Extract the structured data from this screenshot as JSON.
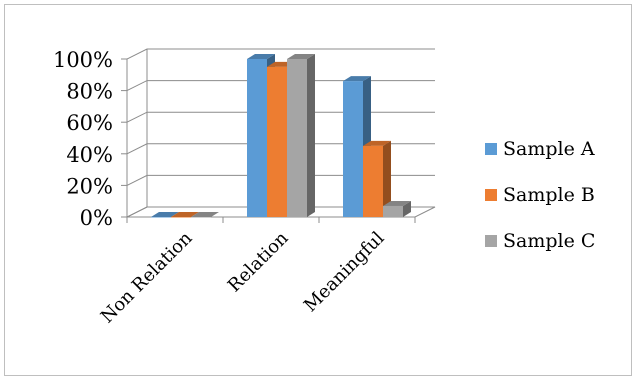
{
  "chart_data": {
    "type": "bar",
    "style": "3d-clustered-column",
    "categories": [
      "Non Relation",
      "Relation",
      "Meaningful"
    ],
    "series": [
      {
        "name": "Sample A",
        "values": [
          0,
          100,
          86
        ],
        "color": "#5b9bd5"
      },
      {
        "name": "Sample B",
        "values": [
          0,
          95,
          45
        ],
        "color": "#ed7d31"
      },
      {
        "name": "Sample C",
        "values": [
          0,
          100,
          7
        ],
        "color": "#a5a5a5"
      }
    ],
    "y_ticks": [
      "0%",
      "20%",
      "40%",
      "60%",
      "80%",
      "100%"
    ],
    "ylim": [
      0,
      100
    ],
    "grid": true,
    "legend_position": "right"
  }
}
